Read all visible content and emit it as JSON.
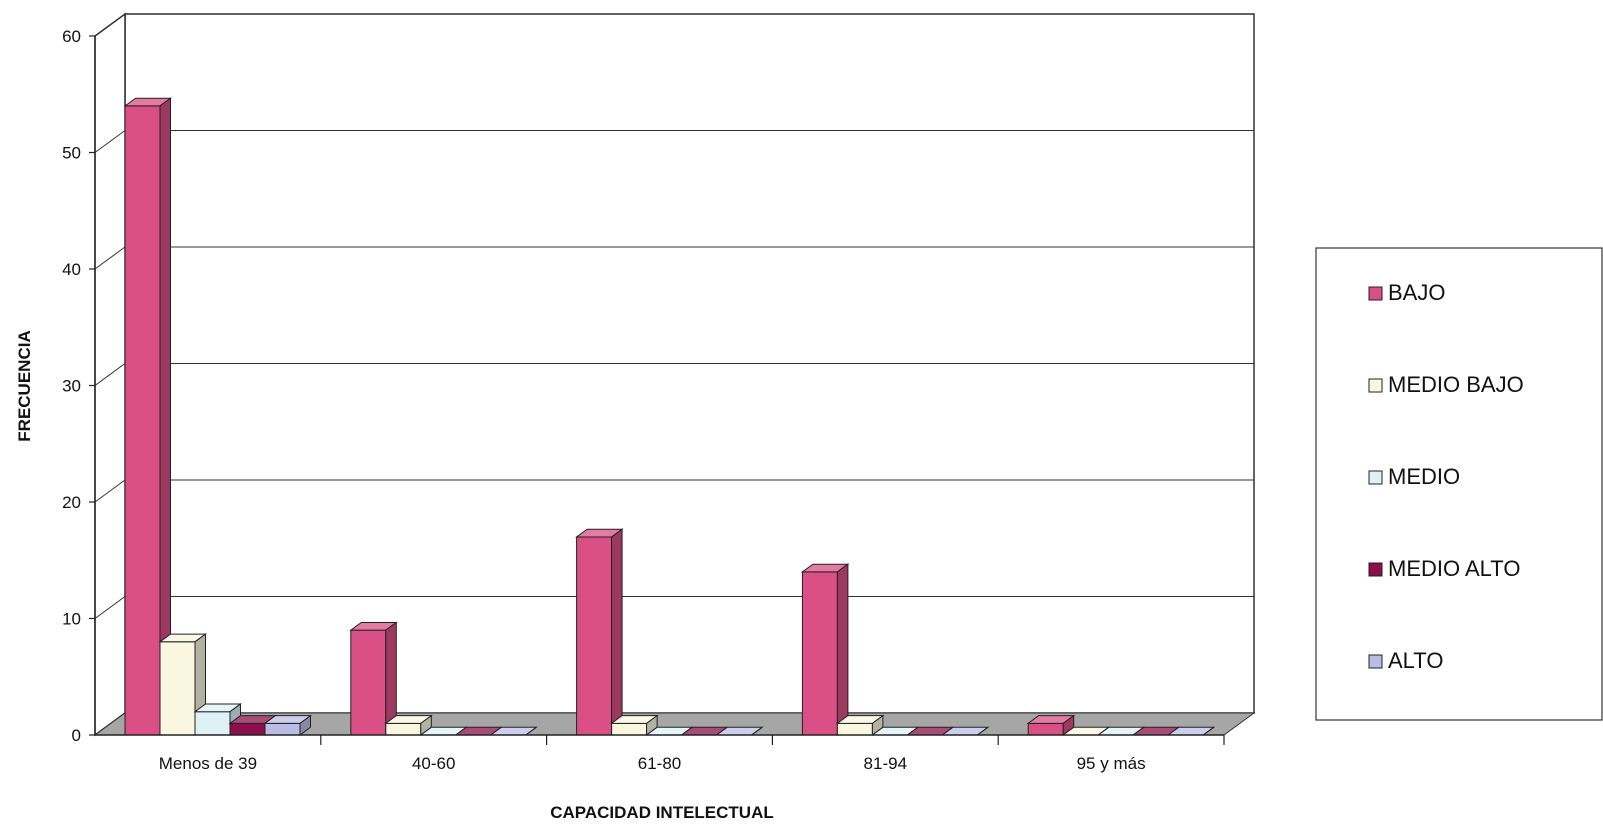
{
  "chart_data": {
    "type": "bar",
    "title": "",
    "xlabel": "CAPACIDAD INTELECTUAL",
    "ylabel": "FRECUENCIA",
    "ylim": [
      0,
      60
    ],
    "yticks": [
      0,
      10,
      20,
      30,
      40,
      50,
      60
    ],
    "categories": [
      "Menos de 39",
      "40-60",
      "61-80",
      "81-94",
      "95 y más"
    ],
    "series": [
      {
        "name": "BAJO",
        "color": "#d94f86",
        "values": [
          54,
          9,
          17,
          14,
          1
        ]
      },
      {
        "name": "MEDIO BAJO",
        "color": "#fbf6e0",
        "values": [
          8,
          1,
          1,
          1,
          0
        ]
      },
      {
        "name": "MEDIO",
        "color": "#ddf1f7",
        "values": [
          2,
          0,
          0,
          0,
          0
        ]
      },
      {
        "name": "MEDIO ALTO",
        "color": "#8c0f4c",
        "values": [
          1,
          0,
          0,
          0,
          0
        ]
      },
      {
        "name": "ALTO",
        "color": "#b9bde6",
        "values": [
          1,
          0,
          0,
          0,
          0
        ]
      }
    ],
    "grid": true,
    "legend_position": "right",
    "style": "3d-clustered-column"
  }
}
